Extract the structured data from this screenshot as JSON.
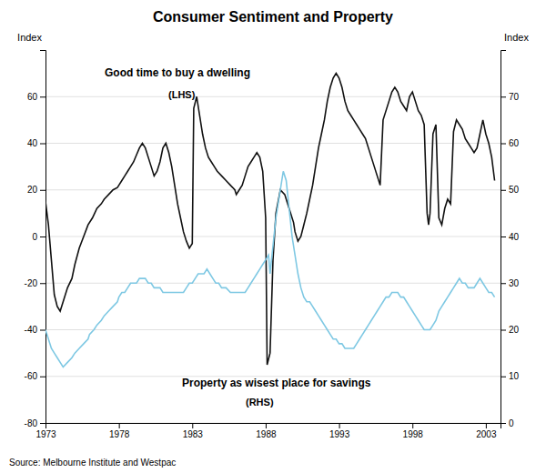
{
  "chart_data": {
    "type": "line",
    "title": "Consumer Sentiment and Property",
    "ylabel": "Index",
    "y2label": "Index",
    "source": "Source: Melbourne Institute and Westpac",
    "annotations": [
      "Good time to buy a dwelling",
      "(LHS)",
      "Property as wisest place for savings",
      "(RHS)"
    ],
    "xlim": [
      1973,
      2004
    ],
    "xticks": [
      1973,
      1978,
      1983,
      1988,
      1993,
      1998,
      2003
    ],
    "ylim": [
      -80,
      80
    ],
    "yticks": [
      -80,
      -60,
      -40,
      -20,
      0,
      20,
      40,
      60
    ],
    "y2lim": [
      0,
      80
    ],
    "y2ticks": [
      0,
      10,
      20,
      30,
      40,
      50,
      60,
      70
    ],
    "grid": true,
    "series": [
      {
        "color": "#111111",
        "x": [
          1973.0,
          1973.2,
          1973.4,
          1973.6,
          1973.8,
          1974.0,
          1974.2,
          1974.5,
          1974.8,
          1975.0,
          1975.3,
          1975.6,
          1975.9,
          1976.2,
          1976.5,
          1976.8,
          1977.0,
          1977.3,
          1977.6,
          1977.9,
          1978.0,
          1978.2,
          1978.4,
          1978.6,
          1978.8,
          1979.0,
          1979.2,
          1979.4,
          1979.6,
          1979.8,
          1980.0,
          1980.2,
          1980.4,
          1980.6,
          1980.8,
          1981.0,
          1981.2,
          1981.4,
          1981.6,
          1981.8,
          1982.0,
          1982.2,
          1982.4,
          1982.6,
          1982.8,
          1983.0,
          1983.1,
          1983.3,
          1983.5,
          1983.7,
          1983.9,
          1984.1,
          1984.3,
          1984.5,
          1984.7,
          1985.0,
          1985.3,
          1985.6,
          1985.9,
          1986.0,
          1986.2,
          1986.4,
          1986.6,
          1986.8,
          1987.0,
          1987.2,
          1987.4,
          1987.6,
          1987.8,
          1988.0,
          1988.1,
          1988.3,
          1988.5,
          1988.7,
          1989.0,
          1989.3,
          1989.6,
          1989.9,
          1990.0,
          1990.2,
          1990.4,
          1990.6,
          1990.8,
          1991.0,
          1991.2,
          1991.4,
          1991.6,
          1991.8,
          1992.0,
          1992.2,
          1992.4,
          1992.6,
          1992.8,
          1993.0,
          1993.2,
          1993.4,
          1993.6,
          1993.8,
          1994.0,
          1994.2,
          1994.4,
          1994.6,
          1994.8,
          1995.0,
          1995.2,
          1995.4,
          1995.6,
          1995.8,
          1996.0,
          1996.2,
          1996.4,
          1996.6,
          1996.8,
          1997.0,
          1997.2,
          1997.4,
          1997.6,
          1997.8,
          1998.0,
          1998.2,
          1998.4,
          1998.6,
          1998.8,
          1999.0,
          1999.1,
          1999.2,
          1999.4,
          1999.6,
          1999.8,
          2000.0,
          2000.2,
          2000.4,
          2000.6,
          2000.8,
          2001.0,
          2001.2,
          2001.4,
          2001.6,
          2001.8,
          2002.0,
          2002.2,
          2002.4,
          2002.6,
          2002.8,
          2003.0,
          2003.2,
          2003.4,
          2003.6
        ],
        "values": [
          15,
          5,
          -10,
          -25,
          -30,
          -32,
          -28,
          -22,
          -18,
          -12,
          -5,
          0,
          5,
          8,
          12,
          14,
          16,
          18,
          20,
          21,
          22,
          24,
          26,
          28,
          30,
          32,
          35,
          38,
          40,
          38,
          34,
          30,
          26,
          28,
          32,
          38,
          40,
          36,
          30,
          22,
          14,
          8,
          2,
          -2,
          -5,
          -3,
          55,
          60,
          52,
          44,
          38,
          34,
          32,
          30,
          28,
          26,
          24,
          22,
          20,
          18,
          20,
          22,
          26,
          30,
          32,
          34,
          36,
          34,
          28,
          8,
          -55,
          -50,
          -10,
          10,
          20,
          18,
          12,
          6,
          2,
          -2,
          0,
          5,
          10,
          16,
          22,
          30,
          38,
          44,
          50,
          58,
          64,
          68,
          70,
          68,
          64,
          58,
          54,
          52,
          50,
          48,
          46,
          44,
          42,
          38,
          34,
          30,
          26,
          22,
          50,
          54,
          58,
          62,
          64,
          62,
          58,
          56,
          54,
          60,
          62,
          58,
          54,
          52,
          48,
          10,
          5,
          10,
          44,
          48,
          8,
          5,
          12,
          16,
          14,
          45,
          50,
          48,
          46,
          42,
          40,
          38,
          36,
          38,
          44,
          50,
          44,
          40,
          34,
          24
        ]
      },
      {
        "color": "#7ec8e3",
        "axis": "y2",
        "x": [
          1973.0,
          1973.2,
          1973.4,
          1973.6,
          1973.8,
          1974.0,
          1974.2,
          1974.5,
          1974.8,
          1975.0,
          1975.3,
          1975.6,
          1975.9,
          1976.0,
          1976.3,
          1976.5,
          1976.8,
          1977.0,
          1977.3,
          1977.6,
          1977.9,
          1978.0,
          1978.2,
          1978.4,
          1978.6,
          1978.8,
          1979.0,
          1979.2,
          1979.4,
          1979.6,
          1979.8,
          1980.0,
          1980.2,
          1980.4,
          1980.6,
          1980.8,
          1981.0,
          1981.2,
          1981.4,
          1981.6,
          1981.8,
          1982.0,
          1982.2,
          1982.4,
          1982.6,
          1982.8,
          1983.0,
          1983.2,
          1983.4,
          1983.6,
          1983.8,
          1984.0,
          1984.2,
          1984.4,
          1984.6,
          1984.8,
          1985.0,
          1985.3,
          1985.6,
          1985.9,
          1986.0,
          1986.2,
          1986.4,
          1986.6,
          1986.8,
          1987.0,
          1987.2,
          1987.4,
          1987.6,
          1987.8,
          1988.0,
          1988.2,
          1988.3,
          1988.5,
          1988.7,
          1989.0,
          1989.2,
          1989.4,
          1989.6,
          1989.8,
          1990.0,
          1990.2,
          1990.4,
          1990.6,
          1990.8,
          1991.0,
          1991.2,
          1991.4,
          1991.6,
          1991.8,
          1992.0,
          1992.2,
          1992.4,
          1992.6,
          1992.8,
          1993.0,
          1993.2,
          1993.4,
          1993.6,
          1993.8,
          1994.0,
          1994.2,
          1994.4,
          1994.6,
          1994.8,
          1995.0,
          1995.2,
          1995.4,
          1995.6,
          1995.8,
          1996.0,
          1996.2,
          1996.4,
          1996.6,
          1996.8,
          1997.0,
          1997.2,
          1997.4,
          1997.6,
          1997.8,
          1998.0,
          1998.2,
          1998.4,
          1998.6,
          1998.8,
          1999.0,
          1999.2,
          1999.4,
          1999.6,
          1999.8,
          2000.0,
          2000.2,
          2000.4,
          2000.6,
          2000.8,
          2001.0,
          2001.2,
          2001.4,
          2001.6,
          2001.8,
          2002.0,
          2002.2,
          2002.4,
          2002.6,
          2002.8,
          2003.0,
          2003.2,
          2003.4,
          2003.6
        ],
        "values": [
          20,
          18,
          16,
          15,
          14,
          13,
          12,
          13,
          14,
          15,
          16,
          17,
          18,
          19,
          20,
          21,
          22,
          23,
          24,
          25,
          26,
          27,
          28,
          28,
          29,
          30,
          30,
          30,
          31,
          31,
          31,
          30,
          30,
          29,
          29,
          29,
          28,
          28,
          28,
          28,
          28,
          28,
          28,
          28,
          29,
          30,
          30,
          31,
          32,
          32,
          32,
          33,
          32,
          31,
          30,
          30,
          29,
          29,
          28,
          28,
          28,
          28,
          28,
          28,
          29,
          30,
          31,
          32,
          33,
          34,
          35,
          36,
          32,
          38,
          44,
          50,
          54,
          52,
          46,
          40,
          36,
          32,
          29,
          27,
          26,
          26,
          25,
          24,
          23,
          22,
          21,
          20,
          19,
          18,
          18,
          17,
          17,
          16,
          16,
          16,
          16,
          17,
          18,
          19,
          20,
          21,
          22,
          23,
          24,
          25,
          26,
          27,
          27,
          28,
          28,
          28,
          27,
          27,
          26,
          25,
          24,
          23,
          22,
          21,
          20,
          20,
          20,
          21,
          22,
          24,
          25,
          26,
          27,
          28,
          29,
          30,
          31,
          30,
          30,
          29,
          29,
          29,
          30,
          31,
          30,
          29,
          28,
          28,
          27
        ]
      }
    ]
  }
}
